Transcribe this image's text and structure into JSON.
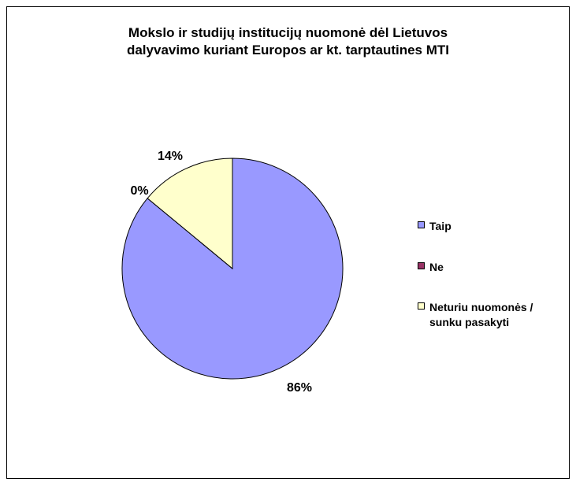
{
  "chart_data": {
    "type": "pie",
    "title_lines": [
      "Mokslo ir studijų institucijų nuomonė dėl Lietuvos",
      "dalyvavimo kuriant Europos ar kt. tarptautines MTI"
    ],
    "categories": [
      "Taip",
      "Ne",
      "Neturiu nuomonės / sunku pasakyti"
    ],
    "legend_lines": [
      [
        "Taip"
      ],
      [
        "Ne"
      ],
      [
        "Neturiu nuomonės /",
        "sunku pasakyti"
      ]
    ],
    "values": [
      86,
      0,
      14
    ],
    "data_labels": [
      "86%",
      "0%",
      "14%"
    ],
    "colors": [
      "#9999FF",
      "#993366",
      "#FFFFCC"
    ],
    "legend_position": "right",
    "start_angle_deg": 0,
    "direction": "clockwise"
  }
}
